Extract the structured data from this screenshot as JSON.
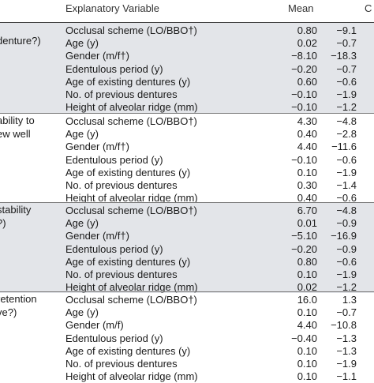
{
  "header": {
    "variable": "Explanatory Variable",
    "mean": "Mean",
    "ci": "C"
  },
  "groups": [
    {
      "label": "denture?)",
      "shaded": true,
      "rows": [
        {
          "variable": "Occlusal scheme (LO/BBO†)",
          "mean": "0.80",
          "ci": "−9.1"
        },
        {
          "variable": "Age (y)",
          "mean": "0.02",
          "ci": "−0.7"
        },
        {
          "variable": "Gender (m/f†)",
          "mean": "−8.10",
          "ci": "−18.3"
        },
        {
          "variable": "Edentulous period (y)",
          "mean": "−0.20",
          "ci": "−0.7"
        },
        {
          "variable": "Age of existing dentures (y)",
          "mean": "0.60",
          "ci": "−0.6"
        },
        {
          "variable": "No. of previous dentures",
          "mean": "−0.10",
          "ci": "−1.9"
        },
        {
          "variable": "Height of alveolar ridge (mm)",
          "mean": "−0.10",
          "ci": "−1.2"
        }
      ]
    },
    {
      "label": "ability to\new well",
      "shaded": false,
      "rows": [
        {
          "variable": "Occlusal scheme (LO/BBO†)",
          "mean": "4.30",
          "ci": "−4.8"
        },
        {
          "variable": "Age (y)",
          "mean": "0.40",
          "ci": "−2.8"
        },
        {
          "variable": "Gender (m/f†)",
          "mean": "4.40",
          "ci": "−11.6"
        },
        {
          "variable": "Edentulous period (y)",
          "mean": "−0.10",
          "ci": "−0.6"
        },
        {
          "variable": "Age of existing dentures (y)",
          "mean": "0.10",
          "ci": "−1.9"
        },
        {
          "variable": "No. of previous dentures",
          "mean": "0.30",
          "ci": "−1.4"
        },
        {
          "variable": "Height of alveolar ridge (mm)",
          "mean": "0.40",
          "ci": "−0.6"
        }
      ]
    },
    {
      "label": "stability\n?)",
      "shaded": true,
      "rows": [
        {
          "variable": "Occlusal scheme (LO/BBO†)",
          "mean": "6.70",
          "ci": "−4.8"
        },
        {
          "variable": "Age (y)",
          "mean": "0.01",
          "ci": "−0.9"
        },
        {
          "variable": "Gender (m/f†)",
          "mean": "−5.10",
          "ci": "−16.9"
        },
        {
          "variable": "Edentulous period (y)",
          "mean": "−0.20",
          "ci": "−0.9"
        },
        {
          "variable": "Age of existing dentures (y)",
          "mean": "0.80",
          "ci": "−0.6"
        },
        {
          "variable": "No. of previous dentures",
          "mean": "0.10",
          "ci": "−1.9"
        },
        {
          "variable": "Height of alveolar ridge (mm)",
          "mean": "0.02",
          "ci": "−1.2"
        }
      ]
    },
    {
      "label": "retention\nve?)",
      "shaded": false,
      "rows": [
        {
          "variable": "Occlusal scheme (LO/BBO†)",
          "mean": "16.0",
          "ci": "1.3"
        },
        {
          "variable": "Age (y)",
          "mean": "0.10",
          "ci": "−0.7"
        },
        {
          "variable": "Gender (m/f)",
          "mean": "4.40",
          "ci": "−10.8"
        },
        {
          "variable": "Edentulous period (y)",
          "mean": "−0.40",
          "ci": "−1.3"
        },
        {
          "variable": "Age of existing dentures (y)",
          "mean": "0.10",
          "ci": "−1.3"
        },
        {
          "variable": "No. of previous dentures",
          "mean": "0.10",
          "ci": "−1.9"
        },
        {
          "variable": "Height of alveolar ridge (mm)",
          "mean": "0.10",
          "ci": "−1.1"
        }
      ]
    }
  ]
}
